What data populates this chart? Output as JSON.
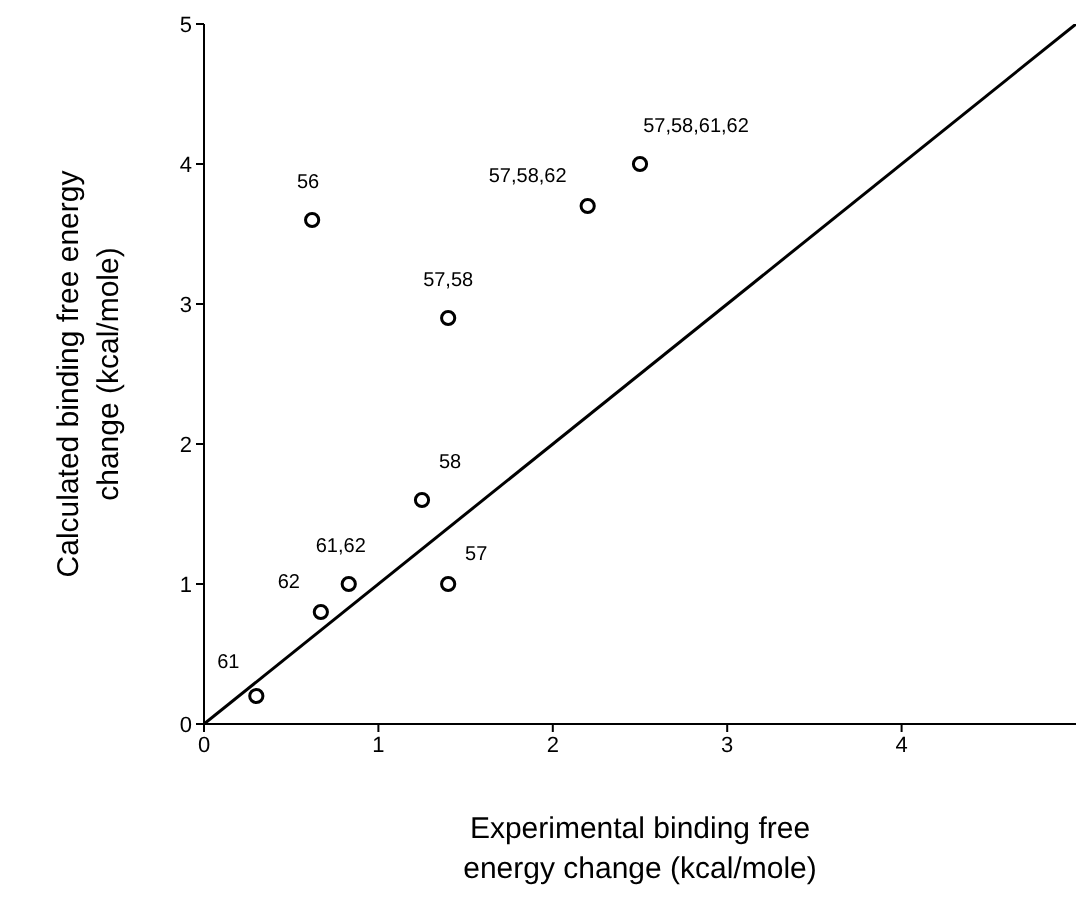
{
  "chart_data": {
    "type": "scatter",
    "xlabel": "Experimental binding free energy change (kcal/mole)",
    "ylabel": "Calculated binding free energy change (kcal/mole)",
    "xlim": [
      0,
      5
    ],
    "xticks": [
      0,
      1,
      2,
      3,
      4
    ],
    "ylim": [
      0,
      5
    ],
    "yticks": [
      0,
      1,
      2,
      3,
      4,
      5
    ],
    "grid": false,
    "legend": false,
    "marker": "circle",
    "series": [
      {
        "color": "#000000",
        "x": [
          0.3,
          0.67,
          0.83,
          1.25,
          1.4,
          1.4,
          0.62,
          2.2,
          2.5
        ],
        "values": [
          0.2,
          0.8,
          1.0,
          1.6,
          1.0,
          2.9,
          3.6,
          3.7,
          4.0
        ]
      },
      {
        "type": "line",
        "color": "#000000",
        "line_style": "solid",
        "marker": "none",
        "x": [
          0,
          5
        ],
        "values": [
          0,
          5
        ]
      }
    ],
    "annotations": [
      {
        "text": "61",
        "x": 0.3,
        "y": 0.2
      },
      {
        "text": "62",
        "x": 0.67,
        "y": 0.8
      },
      {
        "text": "61,62",
        "x": 0.83,
        "y": 1.0
      },
      {
        "text": "58",
        "x": 1.25,
        "y": 1.6
      },
      {
        "text": "57",
        "x": 1.4,
        "y": 1.0
      },
      {
        "text": "57,58",
        "x": 1.4,
        "y": 2.9
      },
      {
        "text": "56",
        "x": 0.62,
        "y": 3.6
      },
      {
        "text": "57,58,62",
        "x": 2.2,
        "y": 3.7
      },
      {
        "text": "57,58,61,62",
        "x": 2.5,
        "y": 4.0
      }
    ]
  }
}
